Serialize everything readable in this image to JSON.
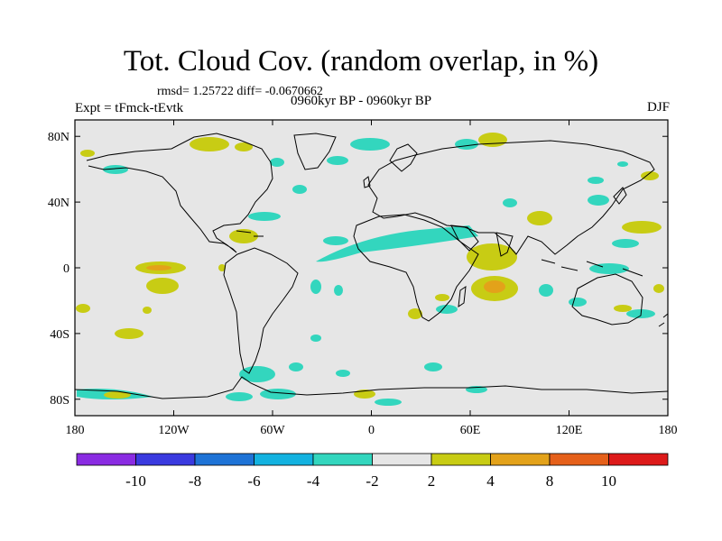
{
  "title": "Tot. Cloud Cov. (random overlap, in %)",
  "stats": "rmsd= 1.25722 diff= -0.0670662",
  "period": "0960kyr BP - 0960kyr BP",
  "experiment": "Expt = tFmck-tEvtk",
  "season": "DJF",
  "map": {
    "projection": "cylindrical-equidistant",
    "background_color": "#e6e6e6",
    "x_ticks": [
      {
        "lon": -180,
        "label": "180"
      },
      {
        "lon": -120,
        "label": "120W"
      },
      {
        "lon": -60,
        "label": "60W"
      },
      {
        "lon": 0,
        "label": "0"
      },
      {
        "lon": 60,
        "label": "60E"
      },
      {
        "lon": 120,
        "label": "120E"
      },
      {
        "lon": 180,
        "label": "180"
      }
    ],
    "y_ticks": [
      {
        "lat": 80,
        "label": "80N"
      },
      {
        "lat": 40,
        "label": "40N"
      },
      {
        "lat": 0,
        "label": "0"
      },
      {
        "lat": -40,
        "label": "40S"
      },
      {
        "lat": -80,
        "label": "80S"
      }
    ]
  },
  "colorbar": {
    "colors": [
      "#8a2be2",
      "#3a3adf",
      "#1e73d6",
      "#13b2e0",
      "#33d6be",
      "#e6e6e6",
      "#c8cc14",
      "#e3a21a",
      "#e5601a",
      "#dd1a1a"
    ],
    "labels": [
      "-10",
      "-8",
      "-6",
      "-4",
      "-2",
      "2",
      "4",
      "8",
      "10"
    ]
  }
}
